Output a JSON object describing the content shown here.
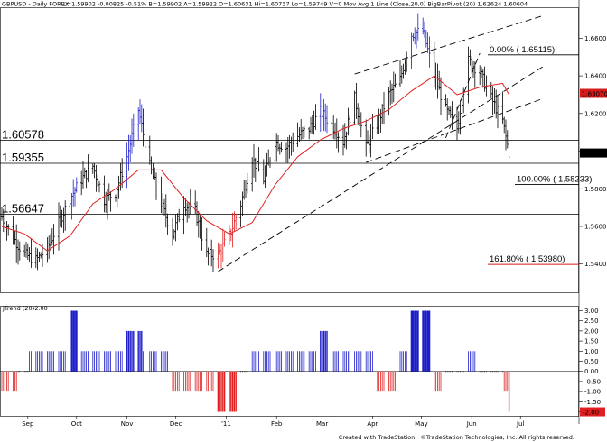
{
  "header": {
    "symbol": "GBPUSD - Daily  FOREX",
    "quote": "L=1.59902  -0.00825  -0.51%  B=1.59902  A=1.59922  O=1.60631  Hi=1.60737  Lo=1.59749  V=0  Mov Avg 1 Line (Close,20,0)  BigBarPivot (20)  1.62624  1.60604"
  },
  "price_badges": [
    {
      "text": "1.63070",
      "color": "#d41c1c",
      "value": 1.6307
    },
    {
      "text": "1.59902",
      "color": "#000000",
      "value": 1.59902
    }
  ],
  "levels": [
    {
      "label": "1.60578",
      "value": 1.60578
    },
    {
      "label": "1.59355",
      "value": 1.59355
    },
    {
      "label": "1.56647",
      "value": 1.56647
    }
  ],
  "fib_levels": [
    {
      "label": "0.00% ( 1.65115)",
      "value": 1.65115,
      "color": "#000000"
    },
    {
      "label": "100.00% ( 1.58233)",
      "value": 1.58233,
      "color": "#000000"
    },
    {
      "label": "161.80% ( 1.53980)",
      "value": 1.5398,
      "color": "#d41c1c"
    }
  ],
  "oscillator": {
    "title": "JTrend (20)",
    "value_label": "-2.00",
    "colors": {
      "positive": "#1e1ec8",
      "negative": "#e02020",
      "neutral": "#000000"
    }
  },
  "footer": {
    "credit": "Created with TradeStation",
    "copyright": "©TradeStation Technologies, Inc. All rights reserved."
  },
  "chart_data": [
    {
      "type": "line",
      "title": "GBPUSD - Daily",
      "x_ticks": [
        "Sep",
        "Oct",
        "Nov",
        "Dec",
        "'11",
        "Feb",
        "Mar",
        "Apr",
        "May",
        "Jun",
        "Jul"
      ],
      "y_ticks": [
        "1.66000",
        "1.64000",
        "1.62000",
        "1.60000",
        "1.58000",
        "1.56000",
        "1.54000"
      ],
      "ylim": [
        1.525,
        1.676
      ],
      "series": [
        {
          "points": [
            [
              "Aug 16",
              1.565
            ],
            [
              "Aug 23",
              1.554
            ],
            [
              "Aug 30",
              1.545
            ],
            [
              "Sep 6",
              1.542
            ],
            [
              "Sep 13",
              1.548
            ],
            [
              "Sep 20",
              1.562
            ],
            [
              "Sep 27",
              1.575
            ],
            [
              "Oct 4",
              1.585
            ],
            [
              "Oct 11",
              1.592
            ],
            [
              "Oct 18",
              1.574
            ],
            [
              "Oct 25",
              1.578
            ],
            [
              "Nov 1",
              1.597
            ],
            [
              "Nov 8",
              1.622
            ],
            [
              "Nov 15",
              1.592
            ],
            [
              "Nov 22",
              1.572
            ],
            [
              "Nov 29",
              1.556
            ],
            [
              "Dec 6",
              1.572
            ],
            [
              "Dec 13",
              1.568
            ],
            [
              "Dec 20",
              1.545
            ],
            [
              "Dec 27",
              1.545
            ],
            [
              "Jan 3",
              1.555
            ],
            [
              "Jan 10",
              1.572
            ],
            [
              "Jan 17",
              1.596
            ],
            [
              "Jan 24",
              1.585
            ],
            [
              "Jan 31",
              1.605
            ],
            [
              "Feb 7",
              1.602
            ],
            [
              "Feb 14",
              1.608
            ],
            [
              "Feb 21",
              1.612
            ],
            [
              "Feb 28",
              1.621
            ],
            [
              "Mar 7",
              1.614
            ],
            [
              "Mar 14",
              1.605
            ],
            [
              "Mar 21",
              1.628
            ],
            [
              "Mar 28",
              1.602
            ],
            [
              "Apr 4",
              1.615
            ],
            [
              "Apr 11",
              1.63
            ],
            [
              "Apr 18",
              1.638
            ],
            [
              "Apr 25",
              1.662
            ],
            [
              "May 2",
              1.664
            ],
            [
              "May 9",
              1.64
            ],
            [
              "May 16",
              1.622
            ],
            [
              "May 23",
              1.612
            ],
            [
              "May 30",
              1.648
            ],
            [
              "Jun 6",
              1.642
            ],
            [
              "Jun 13",
              1.628
            ],
            [
              "Jun 20",
              1.616
            ],
            [
              "Jun 24",
              1.599
            ]
          ]
        },
        {
          "name": "Mov Avg 1 Line (Close,20,0)",
          "color": "#e02020",
          "points": [
            [
              "Aug 16",
              1.56
            ],
            [
              "Aug 30",
              1.556
            ],
            [
              "Sep 13",
              1.547
            ],
            [
              "Sep 27",
              1.555
            ],
            [
              "Oct 11",
              1.572
            ],
            [
              "Oct 25",
              1.58
            ],
            [
              "Nov 8",
              1.59
            ],
            [
              "Nov 22",
              1.59
            ],
            [
              "Dec 6",
              1.575
            ],
            [
              "Dec 20",
              1.563
            ],
            [
              "Jan 3",
              1.556
            ],
            [
              "Jan 17",
              1.562
            ],
            [
              "Jan 31",
              1.582
            ],
            [
              "Feb 14",
              1.597
            ],
            [
              "Feb 28",
              1.606
            ],
            [
              "Mar 14",
              1.612
            ],
            [
              "Mar 28",
              1.616
            ],
            [
              "Apr 11",
              1.622
            ],
            [
              "Apr 25",
              1.632
            ],
            [
              "May 9",
              1.64
            ],
            [
              "May 23",
              1.63
            ],
            [
              "Jun 6",
              1.634
            ],
            [
              "Jun 20",
              1.636
            ],
            [
              "Jun 24",
              1.63
            ]
          ]
        }
      ],
      "trendlines": [
        {
          "style": "dashed",
          "points": [
            [
              "Dec 27",
              1.536
            ],
            [
              "Jul 15",
              1.645
            ]
          ]
        },
        {
          "style": "dashed",
          "points": [
            [
              "Mar 28",
              1.594
            ],
            [
              "Jul 15",
              1.628
            ]
          ]
        },
        {
          "style": "dashed",
          "points": [
            [
              "Mar 21",
              1.641
            ],
            [
              "Jul 15",
              1.672
            ]
          ]
        },
        {
          "style": "dashed",
          "points": [
            [
              "May 16",
              1.607
            ],
            [
              "Jun 6",
              1.652
            ]
          ]
        }
      ]
    },
    {
      "type": "bar",
      "title": "JTrend (20)",
      "y_ticks": [
        "3.00",
        "2.50",
        "2.00",
        "1.50",
        "1.00",
        "0.50",
        "0.00",
        "-0.50",
        "-1.00",
        "-1.50",
        "-2.00"
      ],
      "ylim": [
        -2.2,
        3.2
      ],
      "segments": [
        {
          "start": "Aug 16",
          "end": "Aug 25",
          "value": -1
        },
        {
          "start": "Aug 26",
          "end": "Sep 1",
          "value": 0
        },
        {
          "start": "Sep 2",
          "end": "Sep 10",
          "value": 1
        },
        {
          "start": "Sep 13",
          "end": "Sep 27",
          "value": 1
        },
        {
          "start": "Sep 28",
          "end": "Oct 1",
          "value": 3
        },
        {
          "start": "Oct 4",
          "end": "Oct 29",
          "value": 1
        },
        {
          "start": "Nov 1",
          "end": "Nov 10",
          "value": 2
        },
        {
          "start": "Nov 11",
          "end": "Nov 26",
          "value": 1
        },
        {
          "start": "Nov 29",
          "end": "Dec 3",
          "value": -1
        },
        {
          "start": "Dec 6",
          "end": "Dec 24",
          "value": -1
        },
        {
          "start": "Dec 27",
          "end": "Jan 7",
          "value": -2
        },
        {
          "start": "Jan 10",
          "end": "Jan 14",
          "value": 0
        },
        {
          "start": "Jan 17",
          "end": "Feb 4",
          "value": 1
        },
        {
          "start": "Feb 7",
          "end": "Feb 25",
          "value": 1
        },
        {
          "start": "Feb 28",
          "end": "Mar 4",
          "value": 2
        },
        {
          "start": "Mar 7",
          "end": "Mar 18",
          "value": 1
        },
        {
          "start": "Mar 21",
          "end": "Apr 1",
          "value": 1
        },
        {
          "start": "Apr 4",
          "end": "Apr 15",
          "value": -1
        },
        {
          "start": "Apr 18",
          "end": "Apr 22",
          "value": 1
        },
        {
          "start": "Apr 25",
          "end": "May 6",
          "value": 3
        },
        {
          "start": "May 9",
          "end": "May 13",
          "value": -1
        },
        {
          "start": "May 16",
          "end": "May 27",
          "value": 0
        },
        {
          "start": "May 30",
          "end": "Jun 3",
          "value": 1
        },
        {
          "start": "Jun 6",
          "end": "Jun 20",
          "value": 0
        },
        {
          "start": "Jun 21",
          "end": "Jun 23",
          "value": -1
        },
        {
          "start": "Jun 24",
          "end": "Jun 24",
          "value": -2
        }
      ]
    }
  ]
}
